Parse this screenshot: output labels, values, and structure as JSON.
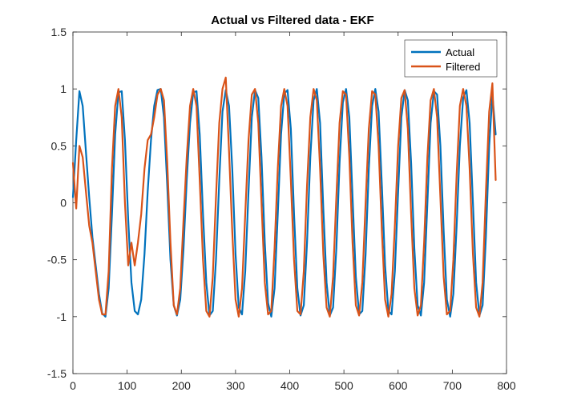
{
  "chart_data": {
    "type": "line",
    "title": "Actual vs Filtered data - EKF",
    "xlabel": "",
    "ylabel": "",
    "xlim": [
      0,
      800
    ],
    "ylim": [
      -1.5,
      1.5
    ],
    "x_ticks": [
      0,
      100,
      200,
      300,
      400,
      500,
      600,
      700,
      800
    ],
    "y_ticks": [
      -1.5,
      -1,
      -0.5,
      0,
      0.5,
      1,
      1.5
    ],
    "x_tick_labels": [
      "0",
      "100",
      "200",
      "300",
      "400",
      "500",
      "600",
      "700",
      "800"
    ],
    "y_tick_labels": [
      "-1.5",
      "-1",
      "-0.5",
      "0",
      "0.5",
      "1",
      "1.5"
    ],
    "grid": false,
    "legend_position": "top-right",
    "series": [
      {
        "name": "Actual",
        "color": "#0072BD",
        "x": [
          0,
          6,
          12,
          18,
          24,
          30,
          36,
          42,
          48,
          54,
          60,
          66,
          72,
          78,
          84,
          90,
          96,
          102,
          108,
          114,
          120,
          126,
          132,
          138,
          144,
          150,
          156,
          162,
          168,
          174,
          180,
          186,
          192,
          198,
          204,
          210,
          216,
          222,
          228,
          234,
          240,
          246,
          252,
          258,
          264,
          270,
          276,
          282,
          288,
          294,
          300,
          306,
          312,
          318,
          324,
          330,
          336,
          342,
          348,
          354,
          360,
          366,
          372,
          378,
          384,
          390,
          396,
          402,
          408,
          414,
          420,
          426,
          432,
          438,
          444,
          450,
          456,
          462,
          468,
          474,
          480,
          486,
          492,
          498,
          504,
          510,
          516,
          522,
          528,
          534,
          540,
          546,
          552,
          558,
          564,
          570,
          576,
          582,
          588,
          594,
          600,
          606,
          612,
          618,
          624,
          630,
          636,
          642,
          648,
          654,
          660,
          666,
          672,
          678,
          684,
          690,
          696,
          702,
          708,
          714,
          720,
          726,
          732,
          738,
          744,
          750,
          756,
          762,
          768,
          774,
          780
        ],
        "y": [
          0.05,
          0.55,
          0.98,
          0.85,
          0.45,
          0.05,
          -0.3,
          -0.55,
          -0.8,
          -0.97,
          -1.0,
          -0.75,
          -0.1,
          0.6,
          0.97,
          0.98,
          0.55,
          -0.15,
          -0.7,
          -0.95,
          -0.98,
          -0.85,
          -0.45,
          0.1,
          0.55,
          0.85,
          0.99,
          1.0,
          0.75,
          0.15,
          -0.5,
          -0.9,
          -0.99,
          -0.85,
          -0.4,
          0.2,
          0.7,
          0.97,
          0.98,
          0.6,
          -0.1,
          -0.7,
          -0.99,
          -0.95,
          -0.5,
          0.2,
          0.8,
          0.99,
          0.85,
          0.3,
          -0.45,
          -0.92,
          -0.98,
          -0.6,
          0.1,
          0.75,
          0.99,
          0.92,
          0.4,
          -0.35,
          -0.88,
          -1.0,
          -0.75,
          -0.1,
          0.6,
          0.96,
          0.99,
          0.65,
          -0.1,
          -0.75,
          -0.99,
          -0.9,
          -0.35,
          0.4,
          0.9,
          1.0,
          0.7,
          -0.05,
          -0.7,
          -0.99,
          -0.92,
          -0.4,
          0.35,
          0.88,
          1.0,
          0.75,
          0.05,
          -0.65,
          -0.98,
          -0.95,
          -0.45,
          0.3,
          0.85,
          1.0,
          0.8,
          0.15,
          -0.55,
          -0.95,
          -0.98,
          -0.6,
          0.1,
          0.75,
          0.99,
          0.9,
          0.35,
          -0.4,
          -0.9,
          -0.99,
          -0.7,
          0.0,
          0.7,
          0.98,
          0.95,
          0.5,
          -0.25,
          -0.85,
          -1.0,
          -0.8,
          -0.2,
          0.5,
          0.92,
          0.99,
          0.7,
          0.0,
          -0.7,
          -0.99,
          -0.9,
          -0.3,
          0.5,
          0.95,
          0.6
        ]
      },
      {
        "name": "Filtered",
        "color": "#D95319",
        "x": [
          0,
          6,
          12,
          18,
          24,
          30,
          36,
          42,
          48,
          54,
          60,
          66,
          72,
          78,
          84,
          90,
          96,
          102,
          108,
          114,
          120,
          126,
          132,
          138,
          144,
          150,
          156,
          162,
          168,
          174,
          180,
          186,
          192,
          198,
          204,
          210,
          216,
          222,
          228,
          234,
          240,
          246,
          252,
          258,
          264,
          270,
          276,
          282,
          288,
          294,
          300,
          306,
          312,
          318,
          324,
          330,
          336,
          342,
          348,
          354,
          360,
          366,
          372,
          378,
          384,
          390,
          396,
          402,
          408,
          414,
          420,
          426,
          432,
          438,
          444,
          450,
          456,
          462,
          468,
          474,
          480,
          486,
          492,
          498,
          504,
          510,
          516,
          522,
          528,
          534,
          540,
          546,
          552,
          558,
          564,
          570,
          576,
          582,
          588,
          594,
          600,
          606,
          612,
          618,
          624,
          630,
          636,
          642,
          648,
          654,
          660,
          666,
          672,
          678,
          684,
          690,
          696,
          702,
          708,
          714,
          720,
          726,
          732,
          738,
          744,
          750,
          756,
          762,
          768,
          774,
          780
        ],
        "y": [
          0.35,
          -0.05,
          0.5,
          0.4,
          0.1,
          -0.2,
          -0.35,
          -0.6,
          -0.85,
          -0.98,
          -0.98,
          -0.6,
          0.3,
          0.85,
          1.0,
          0.75,
          0.0,
          -0.55,
          -0.35,
          -0.55,
          -0.35,
          -0.1,
          0.3,
          0.55,
          0.6,
          0.75,
          0.95,
          1.0,
          0.9,
          0.35,
          -0.35,
          -0.9,
          -0.98,
          -0.75,
          -0.15,
          0.4,
          0.85,
          1.0,
          0.85,
          0.2,
          -0.5,
          -0.95,
          -1.0,
          -0.65,
          0.05,
          0.7,
          1.0,
          1.1,
          0.45,
          -0.25,
          -0.85,
          -1.0,
          -0.75,
          -0.1,
          0.55,
          0.95,
          1.0,
          0.7,
          0.0,
          -0.7,
          -0.98,
          -0.95,
          -0.4,
          0.3,
          0.85,
          1.0,
          0.85,
          0.2,
          -0.5,
          -0.95,
          -0.98,
          -0.6,
          0.15,
          0.75,
          1.0,
          0.9,
          0.3,
          -0.45,
          -0.92,
          -1.0,
          -0.65,
          0.05,
          0.7,
          0.98,
          0.95,
          0.4,
          -0.35,
          -0.9,
          -0.99,
          -0.7,
          0.0,
          0.65,
          0.98,
          0.95,
          0.5,
          -0.25,
          -0.85,
          -1.0,
          -0.8,
          -0.2,
          0.5,
          0.92,
          0.99,
          0.65,
          -0.1,
          -0.75,
          -0.99,
          -0.9,
          -0.35,
          0.4,
          0.9,
          1.0,
          0.75,
          0.05,
          -0.65,
          -0.98,
          -0.95,
          -0.5,
          0.25,
          0.85,
          1.0,
          0.85,
          0.3,
          -0.45,
          -0.92,
          -1.0,
          -0.7,
          0.1,
          0.8,
          1.05,
          0.2
        ]
      }
    ]
  }
}
